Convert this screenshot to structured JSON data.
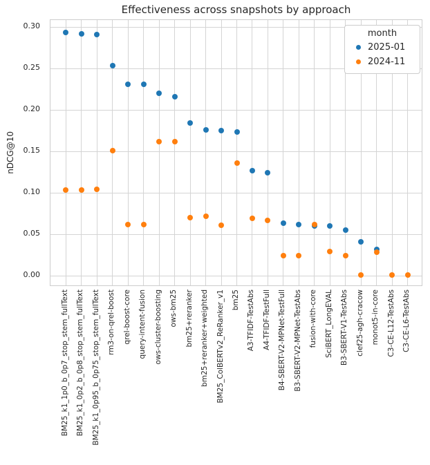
{
  "chart_data": {
    "type": "scatter",
    "title": "Effectiveness across snapshots by approach",
    "xlabel": "",
    "ylabel": "nDCG@10",
    "ylim": [
      -0.013,
      0.308
    ],
    "yticks": [
      0.0,
      0.05,
      0.1,
      0.15,
      0.2,
      0.25,
      0.3
    ],
    "grid": true,
    "legend": {
      "title": "month",
      "position": "upper right"
    },
    "categories": [
      "BM25_k1_1p0_b_0p7_stop_stem_fullText",
      "BM25_k1_0p2_b_0p8_stop_stem_fullText",
      "BM25_k1_0p95_b_0p75_stop_stem_fullText",
      "rm3-on-qrel-boost",
      "qrel-boost-core",
      "query-intent-fusion",
      "ows-cluster-boosting",
      "ows-bm25",
      "bm25+reranker",
      "bm25+reranker+weighted",
      "BM25_ColBERTv2_ReRanker_v1",
      "bm25",
      "A3-TFIDF-TestAbs",
      "A4-TFIDF-TestFull",
      "B4-SBERT-V2-MPNet-TestFull",
      "B3-SBERT-V2-MPNet-TestAbs",
      "fusion-with-core",
      "SciBERT_LongEVAL",
      "B3-SBERT-V1-TestAbs",
      "clef25-agh-cracow",
      "monot5-in-core",
      "C3-CE-L12-TestAbs",
      "C3-CE-L6-TestAbs"
    ],
    "series": [
      {
        "name": "2025-01",
        "color": "#1f77b4",
        "values": [
          0.293,
          0.292,
          0.291,
          0.253,
          0.231,
          0.231,
          0.22,
          0.216,
          0.184,
          0.176,
          0.175,
          0.173,
          0.127,
          0.124,
          0.063,
          0.062,
          0.06,
          0.06,
          0.055,
          0.041,
          0.032,
          null,
          null
        ]
      },
      {
        "name": "2024-11",
        "color": "#ff7f0e",
        "values": [
          0.103,
          0.103,
          0.104,
          0.151,
          0.062,
          0.062,
          0.162,
          0.162,
          0.07,
          0.072,
          0.061,
          0.136,
          0.069,
          0.067,
          0.024,
          0.024,
          0.062,
          0.029,
          0.024,
          0.001,
          0.028,
          0.001,
          0.001
        ]
      }
    ]
  }
}
